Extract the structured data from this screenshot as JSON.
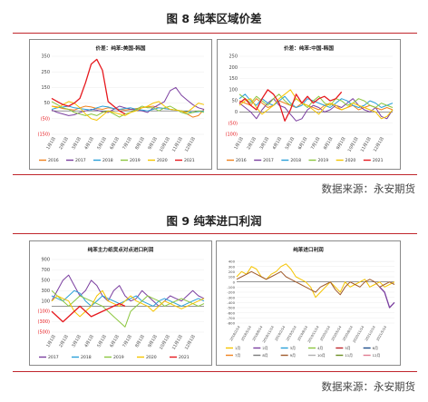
{
  "figure8": {
    "caption": "图 8  纯苯区域价差",
    "source": "数据来源：永安期货"
  },
  "figure9": {
    "caption": "图 9  纯苯进口利润",
    "source": "数据来源：永安期货"
  },
  "colors": {
    "2016": "#f0821e",
    "2017": "#7b3fa0",
    "2018": "#2aa0d8",
    "2019": "#8cc63f",
    "2020": "#f5c400",
    "2021": "#e6191e",
    "accent_line": "#c0262c"
  },
  "chart_data": [
    {
      "id": "us-korea",
      "type": "line",
      "title": "价差：纯苯:美国-韩国",
      "x_ticks": [
        "1月1日",
        "2月1日",
        "3月1日",
        "4月1日",
        "5月1日",
        "6月1日",
        "7月1日",
        "8月1日",
        "9月1日",
        "10月1日",
        "11月1日",
        "12月1日"
      ],
      "ylim": [
        -150,
        350
      ],
      "y_ticks": [
        "350",
        "250",
        "150",
        "50",
        "(50)",
        "(150)"
      ],
      "y_tick_values": [
        350,
        250,
        150,
        50,
        -50,
        -150
      ],
      "legend": [
        "2016",
        "2017",
        "2018",
        "2019",
        "2020",
        "2021"
      ],
      "series": [
        {
          "name": "2016",
          "values": [
            30,
            25,
            15,
            10,
            5,
            20,
            30,
            25,
            15,
            10,
            20,
            15,
            10,
            5,
            10,
            15,
            20,
            25,
            30,
            20,
            15,
            10,
            5,
            0,
            -20,
            -40,
            -30,
            10
          ]
        },
        {
          "name": "2017",
          "values": [
            5,
            -10,
            -20,
            -30,
            -25,
            -10,
            0,
            10,
            5,
            -5,
            -10,
            10,
            30,
            20,
            10,
            5,
            0,
            -10,
            20,
            40,
            60,
            130,
            150,
            100,
            70,
            40,
            20,
            10
          ]
        },
        {
          "name": "2018",
          "values": [
            10,
            20,
            25,
            30,
            20,
            15,
            10,
            5,
            20,
            30,
            25,
            15,
            10,
            15,
            20,
            10,
            5,
            0,
            10,
            20,
            15,
            10,
            5,
            0,
            -5,
            -10,
            -5,
            0
          ]
        },
        {
          "name": "2019",
          "values": [
            60,
            40,
            20,
            10,
            -10,
            -20,
            -30,
            -20,
            -30,
            -10,
            0,
            -20,
            -40,
            -20,
            -10,
            10,
            30,
            20,
            20,
            0,
            20,
            30,
            10,
            -10,
            -20,
            -10,
            0,
            -10
          ]
        },
        {
          "name": "2020",
          "values": [
            30,
            20,
            40,
            60,
            50,
            20,
            -20,
            -50,
            -60,
            -30,
            0,
            -10,
            -20,
            -30,
            -10,
            0,
            20,
            30,
            50,
            60,
            30,
            10,
            5,
            0,
            -10,
            20,
            50,
            40
          ]
        },
        {
          "name": "2021",
          "values": [
            80,
            60,
            40,
            30,
            50,
            80,
            180,
            300,
            330,
            260,
            60,
            30,
            0,
            -20
          ]
        }
      ]
    },
    {
      "id": "china-korea",
      "type": "line",
      "title": "价差：纯苯:中国-韩国",
      "x_ticks": [
        "1月1日",
        "2月1日",
        "3月1日",
        "4月1日",
        "5月1日",
        "6月1日",
        "7月1日",
        "8月1日",
        "9月1日",
        "10月1日",
        "11月1日",
        "12月1日"
      ],
      "ylim": [
        -100,
        250
      ],
      "y_ticks": [
        "250",
        "200",
        "150",
        "100",
        "50",
        "0",
        "(50)",
        "(100)"
      ],
      "y_tick_values": [
        250,
        200,
        150,
        100,
        50,
        0,
        -50,
        -100
      ],
      "legend": [
        "2016",
        "2017",
        "2018",
        "2019",
        "2020",
        "2021"
      ],
      "series": [
        {
          "name": "2016",
          "values": [
            50,
            40,
            30,
            60,
            40,
            20,
            30,
            50,
            40,
            30,
            20,
            40,
            30,
            20,
            10,
            30,
            40,
            20,
            10,
            20,
            30,
            10,
            20,
            30,
            20,
            10,
            20,
            10
          ]
        },
        {
          "name": "2017",
          "values": [
            40,
            20,
            0,
            -30,
            10,
            40,
            60,
            30,
            20,
            -10,
            -40,
            -30,
            10,
            30,
            20,
            0,
            10,
            30,
            20,
            40,
            60,
            30,
            10,
            0,
            20,
            -20,
            -30,
            10
          ]
        },
        {
          "name": "2018",
          "values": [
            60,
            80,
            50,
            30,
            60,
            40,
            30,
            50,
            70,
            40,
            20,
            30,
            60,
            50,
            40,
            30,
            20,
            40,
            60,
            50,
            30,
            20,
            30,
            50,
            40,
            20,
            30,
            40
          ]
        },
        {
          "name": "2019",
          "values": [
            80,
            60,
            40,
            70,
            50,
            30,
            60,
            80,
            50,
            30,
            60,
            40,
            20,
            50,
            70,
            40,
            30,
            60,
            50,
            30,
            40,
            60,
            50,
            30,
            20,
            40,
            30,
            20
          ]
        },
        {
          "name": "2020",
          "values": [
            30,
            50,
            60,
            20,
            -10,
            10,
            30,
            60,
            80,
            100,
            60,
            40,
            30,
            10,
            -10,
            20,
            40,
            30,
            10,
            20,
            40,
            30,
            20,
            10,
            0,
            -30,
            -20,
            10
          ]
        },
        {
          "name": "2021",
          "values": [
            40,
            60,
            30,
            10,
            60,
            100,
            80,
            40,
            -40,
            10,
            80,
            40,
            70,
            40,
            60,
            70,
            50,
            60,
            90
          ]
        }
      ]
    },
    {
      "id": "import-profit-main",
      "type": "line",
      "title": "纯苯主力纸货点对点进口利润",
      "x_ticks": [
        "1月1日",
        "2月1日",
        "3月1日",
        "4月1日",
        "5月1日",
        "6月1日",
        "7月1日",
        "8月1日",
        "9月1日",
        "10月1日",
        "11月1日",
        "12月1日"
      ],
      "ylim": [
        -500,
        900
      ],
      "y_ticks": [
        "900",
        "700",
        "500",
        "300",
        "100",
        "(100)",
        "(300)",
        "(500)"
      ],
      "y_tick_values": [
        900,
        700,
        500,
        300,
        100,
        -100,
        -300,
        -500
      ],
      "legend": [
        "2017",
        "2018",
        "2019",
        "2020",
        "2021"
      ],
      "series": [
        {
          "name": "2017",
          "values": [
            100,
            300,
            500,
            600,
            400,
            200,
            300,
            500,
            400,
            200,
            100,
            300,
            400,
            200,
            100,
            150,
            300,
            200,
            100,
            0,
            100,
            200,
            150,
            100,
            200,
            300,
            200,
            150
          ]
        },
        {
          "name": "2018",
          "values": [
            200,
            150,
            100,
            200,
            300,
            250,
            100,
            0,
            100,
            200,
            150,
            100,
            50,
            100,
            150,
            200,
            100,
            50,
            0,
            100,
            150,
            100,
            50,
            0,
            50,
            100,
            150,
            100
          ]
        },
        {
          "name": "2019",
          "values": [
            300,
            200,
            100,
            0,
            100,
            200,
            150,
            100,
            50,
            0,
            -100,
            -200,
            -300,
            -400,
            -100,
            0,
            100,
            200,
            150,
            100,
            0,
            50,
            100,
            150,
            100,
            50,
            0,
            50
          ]
        },
        {
          "name": "2020",
          "values": [
            100,
            200,
            150,
            100,
            -100,
            -200,
            -100,
            0,
            200,
            300,
            100,
            50,
            0,
            100,
            200,
            100,
            50,
            0,
            -100,
            0,
            100,
            50,
            0,
            -50,
            0,
            50,
            100,
            150
          ]
        },
        {
          "name": "2021",
          "values": [
            -100,
            -200,
            -300,
            -200,
            -100,
            0,
            -100,
            -200,
            -150,
            -100,
            -50,
            0,
            50,
            0
          ]
        }
      ]
    },
    {
      "id": "import-profit-contracts",
      "type": "line",
      "title": "纯苯进口利润",
      "x_ticks": [
        "2018/2/14",
        "2018/5/14",
        "2018/8/14",
        "2018/11/14",
        "2019/2/14",
        "2019/5/14",
        "2019/8/14",
        "2019/11/14",
        "2020/2/14",
        "2020/5/14",
        "2020/8/14",
        "2020/11/14",
        "2021/2/14",
        "2021/5/14"
      ],
      "ylim": [
        -800,
        400
      ],
      "y_ticks": [
        "400",
        "300",
        "200",
        "100",
        "0",
        "-100",
        "-200",
        "-300",
        "-400",
        "-500",
        "-600",
        "-700",
        "-800"
      ],
      "y_tick_values": [
        400,
        300,
        200,
        100,
        0,
        -100,
        -200,
        -300,
        -400,
        -500,
        -600,
        -700,
        -800
      ],
      "legend": [
        "1月",
        "2月",
        "3月",
        "4月",
        "5月",
        "6月",
        "7月",
        "8月",
        "9月",
        "10月",
        "11月",
        "12月"
      ],
      "legend_colors": [
        "#f5c400",
        "#7b3fa0",
        "#2aa0d8",
        "#8cc63f",
        "#c0262c",
        "#1f4e8c",
        "#f0821e",
        "#7a7a7a",
        "#a05a2c",
        "#b0b0b0",
        "#6b8e23",
        "#e07b91"
      ],
      "series": [
        {
          "name": "1月",
          "values": [
            100,
            200,
            150,
            300,
            250,
            100,
            50,
            150,
            200,
            300,
            350,
            250,
            100,
            50,
            0,
            -100,
            -300,
            -200,
            -100,
            0,
            -100,
            -200,
            0,
            -100,
            -50,
            0,
            50,
            -100,
            -50,
            0,
            -100,
            -50,
            0
          ]
        },
        {
          "name": "2月",
          "values": [
            null,
            null,
            null,
            null,
            null,
            null,
            null,
            null,
            null,
            null,
            null,
            null,
            null,
            null,
            null,
            null,
            null,
            null,
            null,
            null,
            null,
            null,
            null,
            null,
            null,
            null,
            null,
            null,
            null,
            -100,
            -200,
            -500,
            -400
          ]
        },
        {
          "name": "9月",
          "values": [
            50,
            100,
            150,
            200,
            150,
            100,
            50,
            100,
            150,
            200,
            100,
            50,
            0,
            -50,
            -100,
            -150,
            -200,
            -100,
            -50,
            0,
            -150,
            -250,
            -100,
            0,
            -50,
            -100,
            0,
            50,
            0,
            -100,
            -50,
            0,
            -50
          ]
        }
      ]
    }
  ]
}
